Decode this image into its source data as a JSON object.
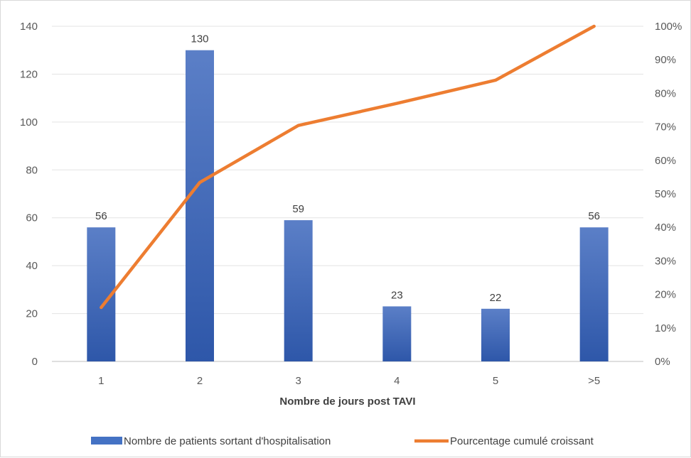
{
  "chart_data": {
    "type": "bar",
    "categories": [
      "1",
      "2",
      "3",
      "4",
      "5",
      ">5"
    ],
    "series": [
      {
        "name": "Nombre de patients sortant d'hospitalisation",
        "type": "bar",
        "axis": "left",
        "values": [
          56,
          130,
          59,
          23,
          22,
          56
        ],
        "color": "#4472c4"
      },
      {
        "name": "Pourcentage cumulé croissant",
        "type": "line",
        "axis": "right",
        "values": [
          16.1,
          53.4,
          70.4,
          77.0,
          83.9,
          100.0
        ],
        "color": "#ed7d31"
      }
    ],
    "xlabel": "Nombre de jours post TAVI",
    "ylim": [
      0,
      140
    ],
    "y_ticks": [
      "0",
      "20",
      "40",
      "60",
      "80",
      "100",
      "120",
      "140"
    ],
    "y2lim": [
      0,
      100
    ],
    "y2_ticks": [
      "0%",
      "10%",
      "20%",
      "30%",
      "40%",
      "50%",
      "60%",
      "70%",
      "80%",
      "90%",
      "100%"
    ],
    "data_labels": [
      "56",
      "130",
      "59",
      "23",
      "22",
      "56"
    ],
    "grid": true,
    "legend_position": "bottom"
  }
}
